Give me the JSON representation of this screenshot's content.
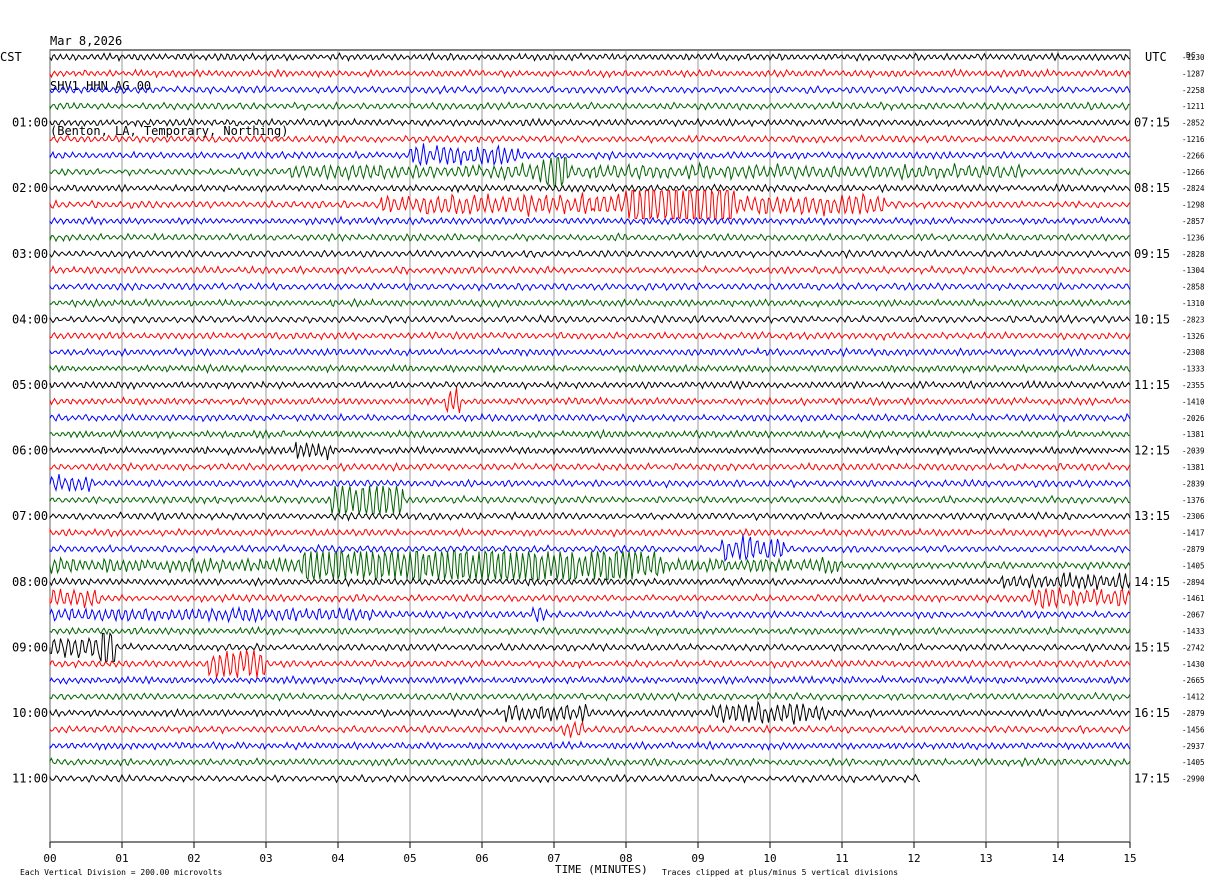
{
  "header": {
    "date": "Mar 8,2026",
    "station": "SHV1 HHN AG 00",
    "location": "(Benton, LA, Temporary, Northing)"
  },
  "left_tz": "CST",
  "right_tz": "UTC",
  "dc_label": "DC",
  "footer": {
    "scale": "Each Vertical Division =  200.00 microvolts",
    "xlabel": "TIME (MINUTES)",
    "clip_note": "Traces clipped at plus/minus 5 vertical divisions"
  },
  "colors": {
    "cycle": [
      "#000000",
      "#ff0000",
      "#0000ff",
      "#006400"
    ],
    "grid": "#808080"
  },
  "chart_data": {
    "type": "line",
    "title": "SHV1 HHN AG 00",
    "xlabel": "TIME (MINUTES)",
    "xlim": [
      0,
      15
    ],
    "x_ticks": [
      "00",
      "01",
      "02",
      "03",
      "04",
      "05",
      "06",
      "07",
      "08",
      "09",
      "10",
      "11",
      "12",
      "13",
      "14",
      "15"
    ],
    "left_hour_labels": [
      "01:00",
      "02:00",
      "03:00",
      "04:00",
      "05:00",
      "06:00",
      "07:00",
      "08:00",
      "09:00",
      "10:00",
      "11:00"
    ],
    "right_hour_labels": [
      "07:15",
      "08:15",
      "09:15",
      "10:15",
      "11:15",
      "12:15",
      "13:15",
      "14:15",
      "15:15",
      "16:15",
      "17:15"
    ],
    "trace_count": 45,
    "dc_offsets": [
      "-1230",
      "-1287",
      "-2258",
      "-1211",
      "-2852",
      "-1216",
      "-2266",
      "-1266",
      "-2824",
      "-1298",
      "-2857",
      "-1236",
      "-2828",
      "-1304",
      "-2858",
      "-1310",
      "-2823",
      "-1326",
      "-2308",
      "-1333",
      "-2355",
      "-1410",
      "-2026",
      "-1381",
      "-2039",
      "-1381",
      "-2839",
      "-1376",
      "-2306",
      "-1417",
      "-2879",
      "-1405",
      "-2894",
      "-1461",
      "-2067",
      "-1433",
      "-2742",
      "-1430",
      "-2665",
      "-1412",
      "-2879",
      "-1456",
      "-2937",
      "-1405",
      "-2990"
    ],
    "last_trace_end_minute": 12.1
  }
}
